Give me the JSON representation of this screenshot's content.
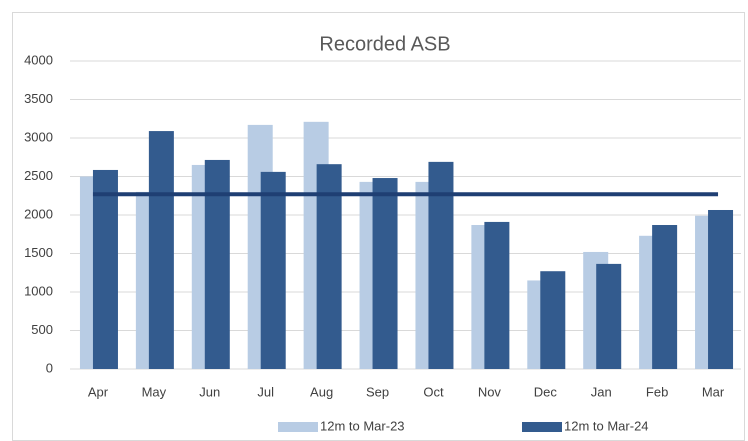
{
  "chart_data": {
    "type": "bar",
    "title": "Recorded ASB",
    "categories": [
      "Apr",
      "May",
      "Jun",
      "Jul",
      "Aug",
      "Sep",
      "Oct",
      "Nov",
      "Dec",
      "Jan",
      "Feb",
      "Mar"
    ],
    "series": [
      {
        "name": "12m to Mar-23",
        "color": "#b8cce4",
        "values": [
          2500,
          2300,
          2650,
          3170,
          3210,
          2430,
          2430,
          1870,
          1150,
          1520,
          1730,
          1990
        ]
      },
      {
        "name": "12m to Mar-24",
        "color": "#335b8e",
        "values": [
          2585,
          3090,
          2715,
          2560,
          2660,
          2480,
          2690,
          1910,
          1270,
          1365,
          1870,
          2065
        ]
      }
    ],
    "reference_line": {
      "value": 2270,
      "color": "#1f3f73"
    },
    "ylim": [
      0,
      4000
    ],
    "yticks": [
      0,
      500,
      1000,
      1500,
      2000,
      2500,
      3000,
      3500,
      4000
    ],
    "grid": true,
    "legend": "bottom"
  }
}
